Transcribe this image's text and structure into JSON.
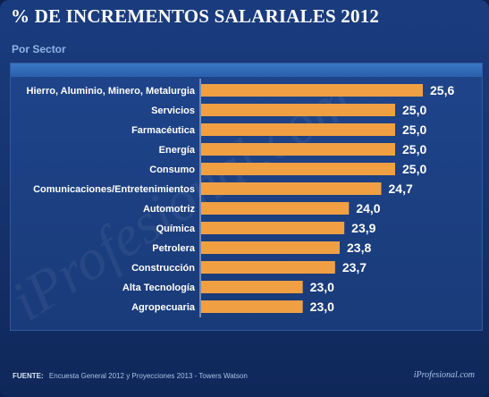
{
  "header": {
    "title": "% DE INCREMENTOS SALARIALES 2012",
    "subtitle": "Por Sector"
  },
  "footer": {
    "source_label": "FUENTE:",
    "source_text": "Encuesta General 2012 y Proyecciones 2013 - Towers Watson",
    "brand": "iProfesional.com"
  },
  "watermark": "iProfesional.com",
  "colors": {
    "bar": "#f0a043",
    "background": "#15326c",
    "label": "#ffffff"
  },
  "chart_data": {
    "type": "bar",
    "orientation": "horizontal",
    "categories": [
      "Hierro, Aluminio, Minero, Metalurgia",
      "Servicios",
      "Farmacéutica",
      "Energía",
      "Consumo",
      "Comunicaciones/Entretenimientos",
      "Automotriz",
      "Química",
      "Petrolera",
      "Construcción",
      "Alta Tecnología",
      "Agropecuaria"
    ],
    "values": [
      25.6,
      25.0,
      25.0,
      25.0,
      25.0,
      24.7,
      24.0,
      23.9,
      23.8,
      23.7,
      23.0,
      23.0
    ],
    "value_labels": [
      "25,6",
      "25,0",
      "25,0",
      "25,0",
      "25,0",
      "24,7",
      "24,0",
      "23,9",
      "23,8",
      "23,7",
      "23,0",
      "23,0"
    ],
    "xlim": [
      20.8,
      25.6
    ],
    "grid": false,
    "legend": "none"
  }
}
